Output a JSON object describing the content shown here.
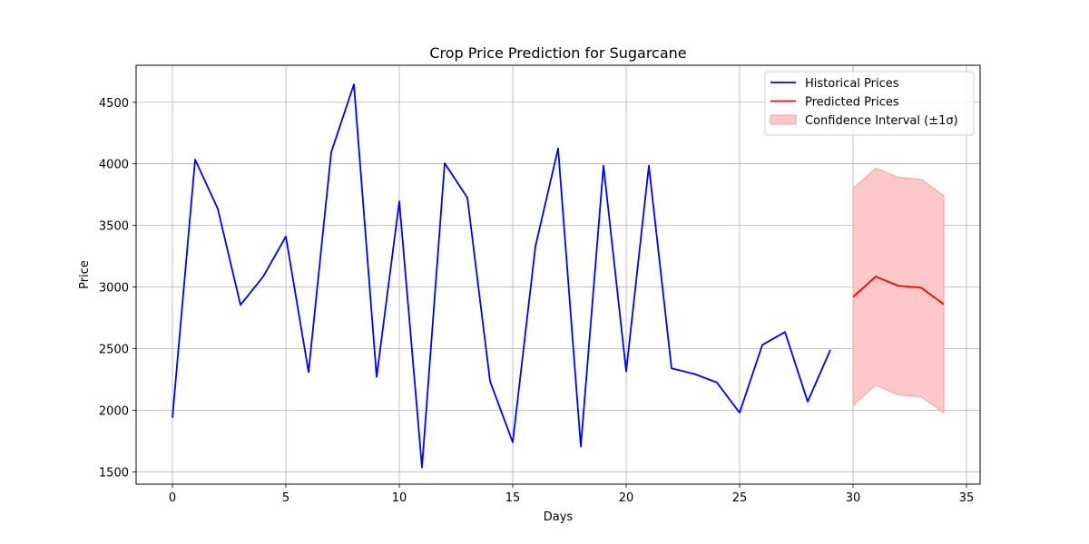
{
  "chart_data": {
    "type": "line",
    "title": "Crop Price Prediction for Sugarcane",
    "xlabel": "Days",
    "ylabel": "Price",
    "xlim": [
      -1.6,
      35.6
    ],
    "ylim": [
      1400,
      4800
    ],
    "xticks": [
      0,
      5,
      10,
      15,
      20,
      25,
      30,
      35
    ],
    "yticks": [
      1500,
      2000,
      2500,
      3000,
      3500,
      4000,
      4500
    ],
    "grid": true,
    "legend_position": "top-right",
    "series": [
      {
        "name": "Historical Prices",
        "color": "#0000ff",
        "x": [
          0,
          1,
          2,
          3,
          4,
          5,
          6,
          7,
          8,
          9,
          10,
          11,
          12,
          13,
          14,
          15,
          16,
          17,
          18,
          19,
          20,
          21,
          22,
          23,
          24,
          25,
          26,
          27,
          28,
          29
        ],
        "y": [
          1940,
          4035,
          3635,
          2855,
          3085,
          3410,
          2310,
          4095,
          4645,
          2270,
          3695,
          1535,
          4005,
          3725,
          2235,
          1740,
          3330,
          4125,
          1705,
          3985,
          2315,
          3985,
          2340,
          2295,
          2225,
          1980,
          2530,
          2635,
          2070,
          2490
        ]
      },
      {
        "name": "Predicted Prices",
        "color": "#ff0000",
        "x": [
          30,
          31,
          32,
          33,
          34
        ],
        "y": [
          2920,
          3085,
          3010,
          2995,
          2860
        ]
      }
    ],
    "band": {
      "name": "Confidence Interval (±1σ)",
      "color": "#ffc8c8",
      "edge_color": "#f4a0a0",
      "x": [
        30,
        31,
        32,
        33,
        34
      ],
      "lower": [
        2040,
        2205,
        2125,
        2110,
        1980
      ],
      "upper": [
        3800,
        3965,
        3890,
        3875,
        3740
      ]
    }
  }
}
